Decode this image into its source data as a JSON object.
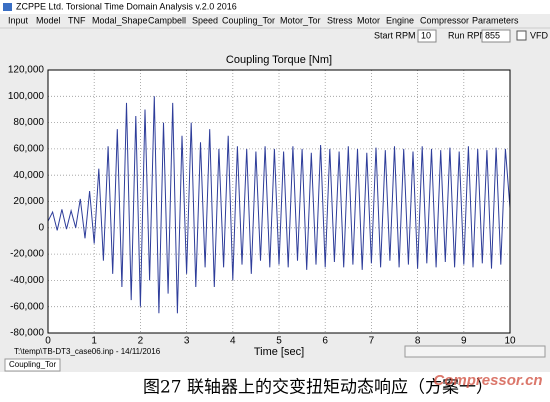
{
  "window_title": "ZCPPE Ltd. Torsional Time Domain Analysis v.2.0 2016",
  "menu": [
    "Input",
    "Model",
    "TNF",
    "Modal_Shape",
    "Campbell",
    "Speed",
    "Coupling_Tor",
    "Motor_Tor",
    "Stress",
    "Motor",
    "Engine",
    "Compressor",
    "Parameters"
  ],
  "toolbar": {
    "start_label": "Start RPM",
    "start_value": "10",
    "run_label": "Run RPM",
    "run_value": "855",
    "vfd_label": "VFD"
  },
  "chart_data": {
    "type": "line",
    "title": "Coupling Torque [Nm]",
    "x_label": "Time [sec]",
    "color": "#2e3d9a",
    "grid": true,
    "xlim": [
      0,
      10
    ],
    "xticks": [
      0,
      1,
      2,
      3,
      4,
      5,
      6,
      7,
      8,
      9,
      10
    ],
    "ylim": [
      -80000,
      120000
    ],
    "yticks": [
      {
        "value": -80000,
        "label": "-80,000"
      },
      {
        "value": -60000,
        "label": "-60,000"
      },
      {
        "value": -40000,
        "label": "-40,000"
      },
      {
        "value": -20000,
        "label": "-20,000"
      },
      0,
      {
        "value": 20000,
        "label": "20,000"
      },
      {
        "value": 40000,
        "label": "40,000"
      },
      {
        "value": 60000,
        "label": "60,000"
      },
      {
        "value": 80000,
        "label": "80,000"
      },
      {
        "value": 100000,
        "label": "100,000"
      },
      {
        "value": 120000,
        "label": "120,000"
      }
    ],
    "x": [
      0,
      0.1,
      0.2,
      0.3,
      0.4,
      0.5,
      0.6,
      0.7,
      0.8,
      0.9,
      1,
      1.1,
      1.2,
      1.3,
      1.4,
      1.5,
      1.6,
      1.7,
      1.8,
      1.9,
      2,
      2.1,
      2.2,
      2.3,
      2.4,
      2.5,
      2.6,
      2.7,
      2.8,
      2.9,
      3,
      3.1,
      3.2,
      3.3,
      3.4,
      3.5,
      3.6,
      3.7,
      3.8,
      3.9,
      4,
      4.1,
      4.2,
      4.3,
      4.4,
      4.5,
      4.6,
      4.7,
      4.8,
      4.9,
      5,
      5.1,
      5.2,
      5.3,
      5.4,
      5.5,
      5.6,
      5.7,
      5.8,
      5.9,
      6,
      6.1,
      6.2,
      6.3,
      6.4,
      6.5,
      6.6,
      6.7,
      6.8,
      6.9,
      7,
      7.1,
      7.2,
      7.3,
      7.4,
      7.5,
      7.6,
      7.7,
      7.8,
      7.9,
      8,
      8.1,
      8.2,
      8.3,
      8.4,
      8.5,
      8.6,
      8.7,
      8.8,
      8.9,
      9,
      9.1,
      9.2,
      9.3,
      9.4,
      9.5,
      9.6,
      9.7,
      9.8,
      9.9,
      10
    ],
    "values": [
      5000,
      12000,
      -2000,
      14000,
      -1000,
      13000,
      0,
      22000,
      -8000,
      28000,
      -12000,
      45000,
      -25000,
      62000,
      -35000,
      75000,
      -45000,
      95000,
      -55000,
      85000,
      -60000,
      90000,
      -40000,
      100000,
      -65000,
      80000,
      -50000,
      95000,
      -65000,
      70000,
      -35000,
      80000,
      -45000,
      65000,
      -30000,
      75000,
      -45000,
      60000,
      -30000,
      70000,
      -40000,
      62000,
      -28000,
      60000,
      -35000,
      58000,
      -25000,
      62000,
      -30000,
      60000,
      -28000,
      58000,
      -30000,
      62000,
      -25000,
      60000,
      -32000,
      57000,
      -28000,
      63000,
      -30000,
      60000,
      -26000,
      58000,
      -30000,
      62000,
      -28000,
      60000,
      -32000,
      57000,
      -27000,
      61000,
      -30000,
      59000,
      -25000,
      62000,
      -30000,
      60000,
      -28000,
      58000,
      -31000,
      62000,
      -27000,
      60000,
      -30000,
      59000,
      -26000,
      61000,
      -30000,
      58000,
      -28000,
      62000,
      -30000,
      60000,
      -27000,
      59000,
      -31000,
      61000,
      -28000,
      60000,
      15000
    ]
  },
  "status_file": "T:\\temp\\TB-DT3_case06.inp - 14/11/2016",
  "tab": "Coupling_Tor",
  "caption": "图27  联轴器上的交变扭矩动态响应（方案一）",
  "watermark": "Compressor.cn"
}
